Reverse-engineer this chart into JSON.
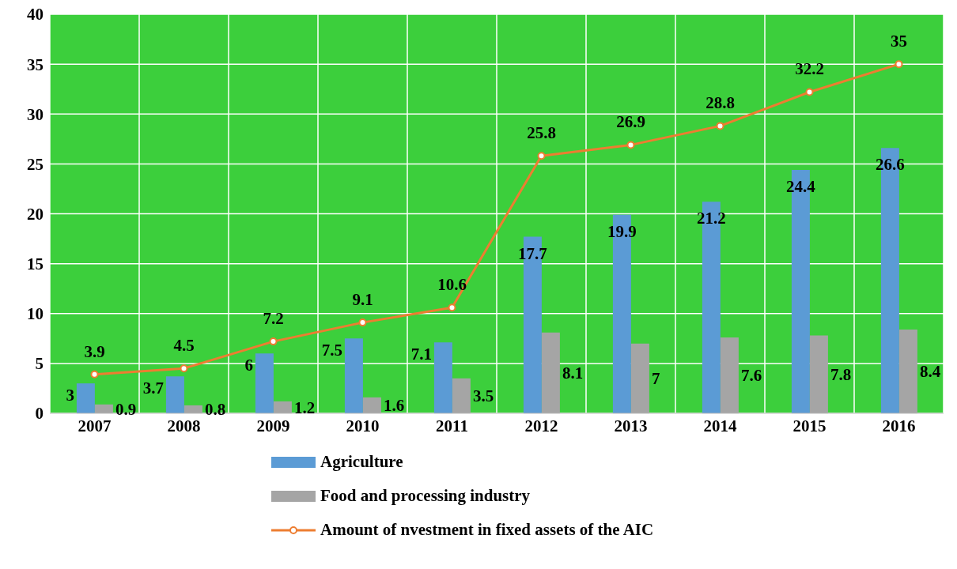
{
  "chart_data": {
    "type": "bar",
    "categories": [
      "2007",
      "2008",
      "2009",
      "2010",
      "2011",
      "2012",
      "2013",
      "2014",
      "2015",
      "2016"
    ],
    "series": [
      {
        "name": "Agriculture",
        "color": "#5b9bd5",
        "values": [
          3,
          3.7,
          6,
          7.5,
          7.1,
          17.7,
          19.9,
          21.2,
          24.4,
          26.6
        ]
      },
      {
        "name": "Food and processing industry",
        "color": "#a5a5a5",
        "values": [
          0.9,
          0.8,
          1.2,
          1.6,
          3.5,
          8.1,
          7,
          7.6,
          7.8,
          8.4
        ]
      },
      {
        "name": "Amount of nvestment in fixed assets of the AIC",
        "type": "line",
        "color": "#ed7d31",
        "values": [
          3.9,
          4.5,
          7.2,
          9.1,
          10.6,
          25.8,
          26.9,
          28.8,
          32.2,
          35
        ]
      }
    ],
    "ylim": [
      0,
      40
    ],
    "yticks": [
      0,
      5,
      10,
      15,
      20,
      25,
      30,
      35,
      40
    ],
    "grid": true,
    "legend": "bottom",
    "data_labels": true,
    "marker": "circle"
  }
}
